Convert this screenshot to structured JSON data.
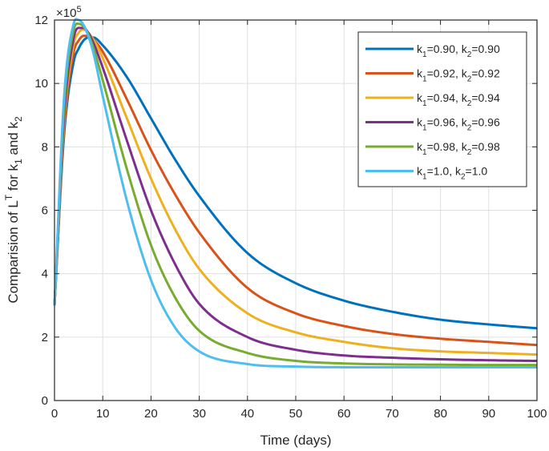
{
  "chart_data": {
    "type": "line",
    "title": "",
    "xlabel": "Time (days)",
    "ylabel": "Comparision of L^T for k_1 and k_2",
    "y_exponent_label": "×10^5",
    "xlim": [
      0,
      100
    ],
    "ylim": [
      0,
      12
    ],
    "xticks": [
      0,
      10,
      20,
      30,
      40,
      50,
      60,
      70,
      80,
      90,
      100
    ],
    "yticks": [
      0,
      2,
      4,
      6,
      8,
      10,
      12
    ],
    "grid": true,
    "legend_position": "northeast",
    "x": [
      0,
      2,
      4,
      5,
      6,
      7,
      8,
      10,
      15,
      20,
      25,
      30,
      40,
      50,
      60,
      70,
      80,
      90,
      100
    ],
    "series": [
      {
        "name": "k1=0.90, k2=0.90",
        "k1": "0.90",
        "k2": "0.90",
        "color": "#0072BD",
        "values": [
          3.0,
          8.4,
          10.7,
          11.1,
          11.35,
          11.45,
          11.45,
          11.2,
          10.2,
          8.9,
          7.6,
          6.45,
          4.65,
          3.7,
          3.15,
          2.8,
          2.55,
          2.4,
          2.28
        ]
      },
      {
        "name": "k1=0.92, k2=0.92",
        "k1": "0.92",
        "k2": "0.92",
        "color": "#D95319",
        "values": [
          3.0,
          8.6,
          11.0,
          11.35,
          11.5,
          11.5,
          11.4,
          11.0,
          9.5,
          7.9,
          6.5,
          5.3,
          3.55,
          2.75,
          2.35,
          2.1,
          1.95,
          1.85,
          1.75
        ]
      },
      {
        "name": "k1=0.94, k2=0.94",
        "k1": "0.94",
        "k2": "0.94",
        "color": "#EDB120",
        "values": [
          3.0,
          8.8,
          11.25,
          11.6,
          11.7,
          11.6,
          11.4,
          10.8,
          8.9,
          7.0,
          5.4,
          4.15,
          2.75,
          2.15,
          1.85,
          1.65,
          1.55,
          1.5,
          1.45
        ]
      },
      {
        "name": "k1=0.96, k2=0.96",
        "k1": "0.96",
        "k2": "0.96",
        "color": "#7E2F8E",
        "values": [
          3.0,
          9.0,
          11.45,
          11.75,
          11.75,
          11.6,
          11.3,
          10.5,
          8.2,
          6.0,
          4.3,
          3.05,
          2.0,
          1.6,
          1.42,
          1.35,
          1.3,
          1.27,
          1.25
        ]
      },
      {
        "name": "k1=0.98, k2=0.98",
        "k1": "0.98",
        "k2": "0.98",
        "color": "#77AC30",
        "values": [
          3.0,
          9.3,
          11.7,
          11.88,
          11.8,
          11.55,
          11.15,
          10.1,
          7.3,
          4.9,
          3.25,
          2.2,
          1.5,
          1.25,
          1.17,
          1.14,
          1.13,
          1.12,
          1.12
        ]
      },
      {
        "name": "k1=1.0, k2=1.0",
        "k1": "1.0",
        "k2": "1.0",
        "color": "#4DBEEE",
        "values": [
          3.0,
          9.6,
          11.9,
          12.0,
          11.85,
          11.5,
          11.0,
          9.6,
          6.3,
          3.8,
          2.3,
          1.55,
          1.15,
          1.07,
          1.05,
          1.05,
          1.05,
          1.05,
          1.05
        ]
      }
    ]
  }
}
